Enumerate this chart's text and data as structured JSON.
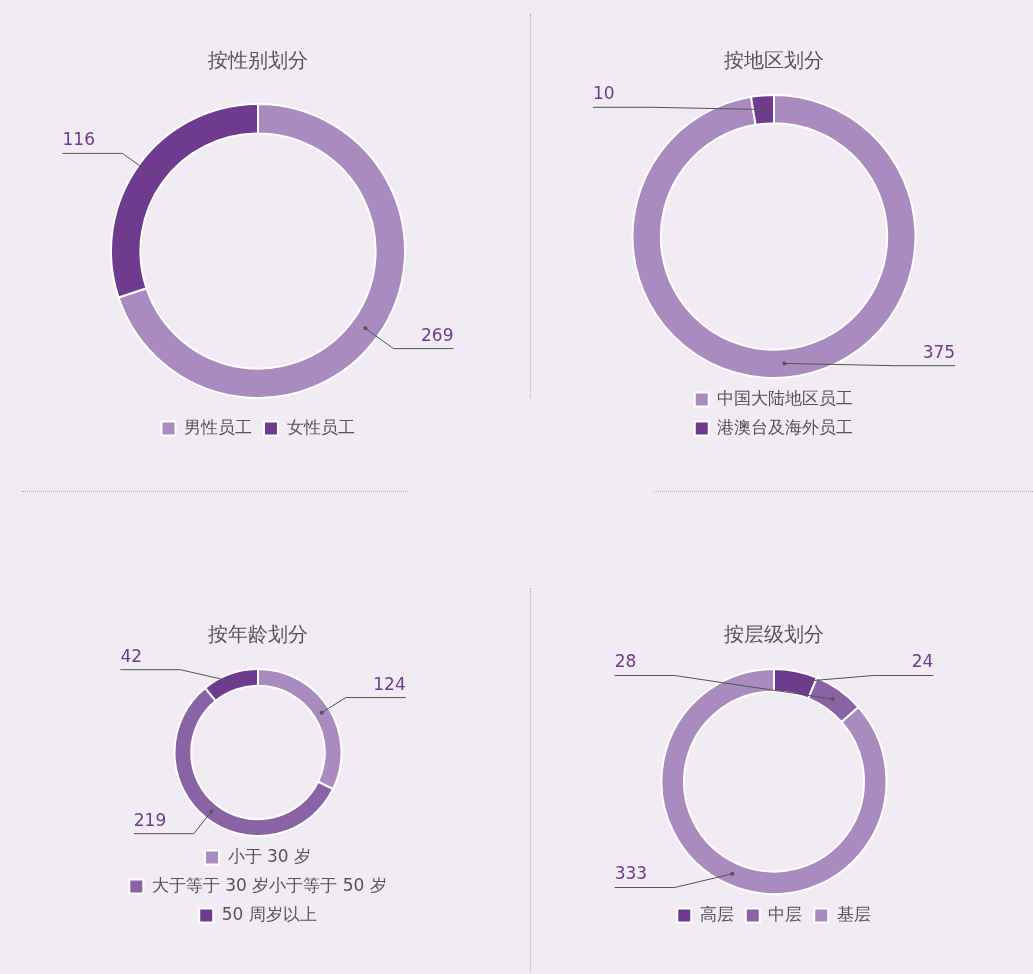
{
  "chart_data": [
    {
      "type": "donut",
      "title": "按性别划分",
      "categories": [
        "男性员工",
        "女性员工"
      ],
      "values": [
        269,
        116
      ],
      "colors": [
        "#a98bbf",
        "#6e3b8f"
      ],
      "data_labels": true,
      "legend": "bottom"
    },
    {
      "type": "donut",
      "title": "按地区划分",
      "categories": [
        "中国大陆地区员工",
        "港澳台及海外员工"
      ],
      "values": [
        375,
        10
      ],
      "colors": [
        "#a98bbf",
        "#6e3b8f"
      ],
      "data_labels": true,
      "legend": "bottom"
    },
    {
      "type": "donut",
      "title": "按年龄划分",
      "categories": [
        "小于 30 岁",
        "大于等于 30 岁小于等于 50 岁",
        "50 周岁以上"
      ],
      "values": [
        124,
        219,
        42
      ],
      "colors": [
        "#a98bbf",
        "#8a63a6",
        "#6e3b8f"
      ],
      "data_labels": true,
      "legend": "bottom"
    },
    {
      "type": "donut",
      "title": "按层级划分",
      "categories": [
        "高层",
        "中层",
        "基层"
      ],
      "values": [
        24,
        28,
        333
      ],
      "colors": [
        "#6e3b8f",
        "#8a63a6",
        "#a98bbf"
      ],
      "data_labels": true,
      "legend": "bottom"
    }
  ]
}
